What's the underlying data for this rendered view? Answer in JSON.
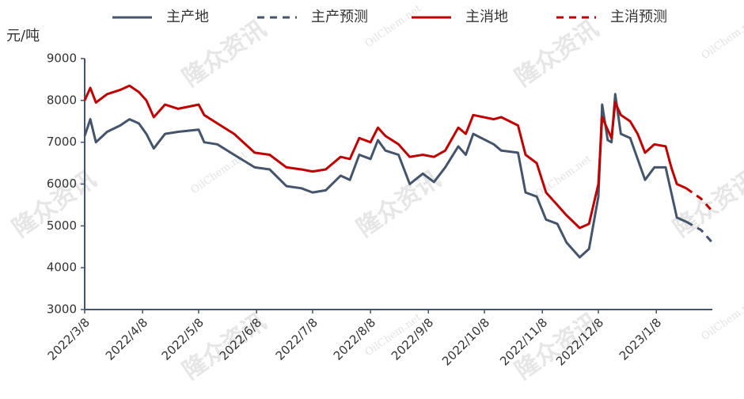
{
  "chart_data": {
    "type": "line",
    "y_unit": "元/吨",
    "watermarks": [
      "隆众资讯",
      "OilChem.net"
    ],
    "x": [
      "2022/3/8",
      "2022/3/11",
      "2022/3/14",
      "2022/3/20",
      "2022/3/27",
      "2022/4/1",
      "2022/4/6",
      "2022/4/10",
      "2022/4/14",
      "2022/4/20",
      "2022/4/27",
      "2022/5/8",
      "2022/5/11",
      "2022/5/18",
      "2022/5/27",
      "2022/6/7",
      "2022/6/15",
      "2022/6/24",
      "2022/7/2",
      "2022/7/8",
      "2022/7/15",
      "2022/7/23",
      "2022/7/28",
      "2022/8/2",
      "2022/8/8",
      "2022/8/12",
      "2022/8/16",
      "2022/8/23",
      "2022/8/29",
      "2022/9/5",
      "2022/9/11",
      "2022/9/17",
      "2022/9/24",
      "2022/9/28",
      "2022/10/2",
      "2022/10/13",
      "2022/10/17",
      "2022/10/26",
      "2022/10/30",
      "2022/11/5",
      "2022/11/10",
      "2022/11/16",
      "2022/11/21",
      "2022/11/28",
      "2022/12/3",
      "2022/12/8",
      "2022/12/10",
      "2022/12/13",
      "2022/12/15",
      "2022/12/17",
      "2022/12/20",
      "2022/12/25",
      "2022/12/29",
      "2023/1/2",
      "2023/1/7",
      "2023/1/13",
      "2023/1/16",
      "2023/1/19",
      "2023/1/24",
      "2023/2/1",
      "2023/2/7"
    ],
    "series": [
      {
        "name": "主产地",
        "color": "#44546a",
        "dashed": false,
        "values": [
          7150,
          7550,
          7000,
          7250,
          7400,
          7550,
          7450,
          7200,
          6850,
          7200,
          7250,
          7300,
          7000,
          6950,
          6700,
          6400,
          6350,
          5950,
          5900,
          5800,
          5850,
          6200,
          6100,
          6700,
          6600,
          7050,
          6800,
          6700,
          6000,
          6250,
          6050,
          6400,
          6900,
          6700,
          7200,
          6950,
          6800,
          6750,
          5800,
          5700,
          5150,
          5050,
          4600,
          4250,
          4450,
          5700,
          7900,
          7050,
          7000,
          8150,
          7200,
          7100,
          6600,
          6100,
          6400,
          6400,
          5800,
          5200,
          5100,
          null,
          null
        ]
      },
      {
        "name": "主产预测",
        "color": "#44546a",
        "dashed": true,
        "values": [
          null,
          null,
          null,
          null,
          null,
          null,
          null,
          null,
          null,
          null,
          null,
          null,
          null,
          null,
          null,
          null,
          null,
          null,
          null,
          null,
          null,
          null,
          null,
          null,
          null,
          null,
          null,
          null,
          null,
          null,
          null,
          null,
          null,
          null,
          null,
          null,
          null,
          null,
          null,
          null,
          null,
          null,
          null,
          null,
          null,
          null,
          null,
          null,
          null,
          null,
          null,
          null,
          null,
          null,
          null,
          null,
          null,
          null,
          5100,
          4900,
          4600
        ]
      },
      {
        "name": "主消地",
        "color": "#c00000",
        "dashed": false,
        "values": [
          8000,
          8300,
          7950,
          8150,
          8250,
          8350,
          8200,
          8000,
          7600,
          7900,
          7800,
          7900,
          7650,
          7450,
          7200,
          6750,
          6700,
          6400,
          6350,
          6300,
          6350,
          6650,
          6600,
          7100,
          7000,
          7350,
          7150,
          6950,
          6650,
          6700,
          6650,
          6800,
          7350,
          7200,
          7650,
          7550,
          7600,
          7400,
          6700,
          6500,
          5800,
          5500,
          5250,
          4950,
          5050,
          6000,
          7600,
          7300,
          7100,
          7950,
          7650,
          7500,
          7200,
          6750,
          6950,
          6900,
          6400,
          6000,
          5900,
          null,
          null
        ]
      },
      {
        "name": "主消预测",
        "color": "#c00000",
        "dashed": true,
        "values": [
          null,
          null,
          null,
          null,
          null,
          null,
          null,
          null,
          null,
          null,
          null,
          null,
          null,
          null,
          null,
          null,
          null,
          null,
          null,
          null,
          null,
          null,
          null,
          null,
          null,
          null,
          null,
          null,
          null,
          null,
          null,
          null,
          null,
          null,
          null,
          null,
          null,
          null,
          null,
          null,
          null,
          null,
          null,
          null,
          null,
          null,
          null,
          null,
          null,
          null,
          null,
          null,
          null,
          null,
          null,
          null,
          null,
          null,
          5900,
          5650,
          5350
        ]
      }
    ],
    "xlim": [
      "2022/3/8",
      "2023/2/7"
    ],
    "xticks": [
      "2022/3/8",
      "2022/4/8",
      "2022/5/8",
      "2022/6/8",
      "2022/7/8",
      "2022/8/8",
      "2022/9/8",
      "2022/10/8",
      "2022/11/8",
      "2022/12/8",
      "2023/1/8"
    ],
    "ylim": [
      3000,
      9000
    ],
    "yticks": [
      3000,
      4000,
      5000,
      6000,
      7000,
      8000,
      9000
    ]
  }
}
